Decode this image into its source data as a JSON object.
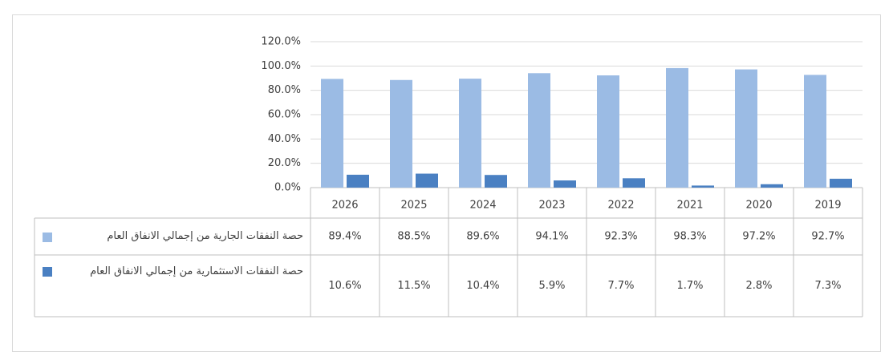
{
  "chart_data": {
    "type": "bar",
    "categories": [
      "2026",
      "2025",
      "2024",
      "2023",
      "2022",
      "2021",
      "2020",
      "2019"
    ],
    "series": [
      {
        "name": "حصة النفقات الجارية من إجمالي الانفاق العام",
        "color": "#9bbbe4",
        "values": [
          89.4,
          88.5,
          89.6,
          94.1,
          92.3,
          98.3,
          97.2,
          92.7
        ],
        "value_labels": [
          "89.4%",
          "88.5%",
          "89.6%",
          "94.1%",
          "92.3%",
          "98.3%",
          "97.2%",
          "92.7%"
        ]
      },
      {
        "name": "حصة النفقات الاستثمارية من إجمالي الانفاق العام",
        "color": "#4a80c2",
        "values": [
          10.6,
          11.5,
          10.4,
          5.9,
          7.7,
          1.7,
          2.8,
          7.3
        ],
        "value_labels": [
          "10.6%",
          "11.5%",
          "10.4%",
          "5.9%",
          "7.7%",
          "1.7%",
          "2.8%",
          "7.3%"
        ]
      }
    ],
    "ylim": [
      0,
      120
    ],
    "yticks": [
      {
        "value": 0,
        "label": "0.0%"
      },
      {
        "value": 20,
        "label": "20.0%"
      },
      {
        "value": 40,
        "label": "40.0%"
      },
      {
        "value": 60,
        "label": "60.0%"
      },
      {
        "value": 80,
        "label": "80.0%"
      },
      {
        "value": 100,
        "label": "100.0%"
      },
      {
        "value": 120,
        "label": "120.0%"
      }
    ],
    "grid": true
  }
}
